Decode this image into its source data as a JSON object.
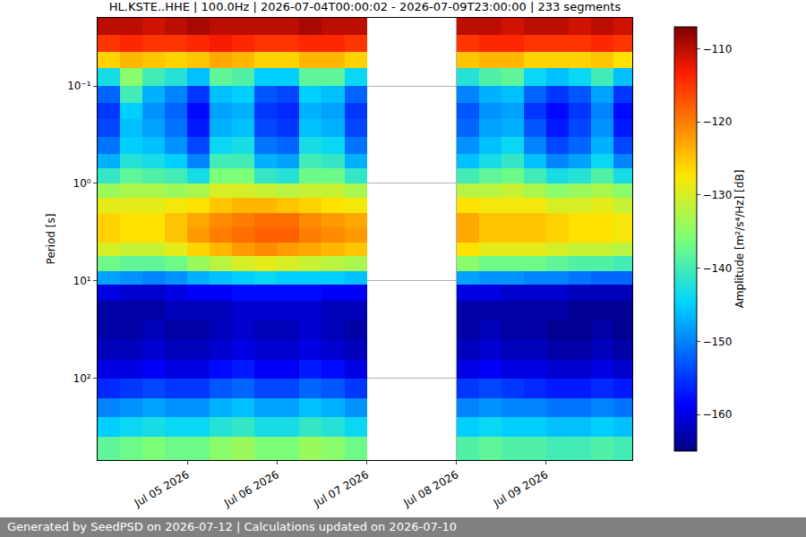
{
  "chart_data": {
    "type": "heatmap",
    "title": "HL.KSTE..HHE | 100.0Hz | 2026-07-04T00:00:02 - 2026-07-09T23:00:00 | 233 segments",
    "ylabel": "Period [s]",
    "footer": "Generated by SeedPSD on 2026-07-12 | Calculations updated on 2026-07-10",
    "log": "y",
    "grid": true,
    "color": "jet",
    "xlim": [
      "2026-07-04 00:00",
      "2026-07-09 23:00"
    ],
    "xticks": [
      {
        "value": "2026-07-05 00:00",
        "label": "Jul 05 2026"
      },
      {
        "value": "2026-07-06 00:00",
        "label": "Jul 06 2026"
      },
      {
        "value": "2026-07-07 00:00",
        "label": "Jul 07 2026"
      },
      {
        "value": "2026-07-08 00:00",
        "label": "Jul 08 2026"
      },
      {
        "value": "2026-07-09 00:00",
        "label": "Jul 09 2026"
      }
    ],
    "ylim": [
      0.02,
      690
    ],
    "yticks": [
      {
        "value": 0.1,
        "label": "10⁻¹"
      },
      {
        "value": 1,
        "label": "10⁰"
      },
      {
        "value": 10,
        "label": "10¹"
      },
      {
        "value": 100,
        "label": "10²"
      }
    ],
    "x_edges": [
      "2026-07-04 00:00",
      "2026-07-04 06:00",
      "2026-07-04 12:00",
      "2026-07-04 18:00",
      "2026-07-05 00:00",
      "2026-07-05 06:00",
      "2026-07-05 12:00",
      "2026-07-05 18:00",
      "2026-07-06 00:00",
      "2026-07-06 06:00",
      "2026-07-06 12:00",
      "2026-07-06 18:00",
      "2026-07-07 00:00",
      "2026-07-07 06:00",
      "2026-07-07 12:00",
      "2026-07-07 18:00",
      "2026-07-08 00:00",
      "2026-07-08 06:00",
      "2026-07-08 12:00",
      "2026-07-08 18:00",
      "2026-07-09 00:00",
      "2026-07-09 06:00",
      "2026-07-09 12:00",
      "2026-07-09 18:00",
      "2026-07-10 00:00"
    ],
    "y_edges": [
      0.02,
      0.03,
      0.045,
      0.065,
      0.1,
      0.15,
      0.22,
      0.33,
      0.5,
      0.7,
      1.0,
      1.4,
      2.0,
      2.8,
      4.0,
      5.6,
      8,
      11,
      16,
      25,
      40,
      65,
      100,
      160,
      250,
      400,
      690
    ],
    "cells": [
      [
        -110,
        -110,
        -111,
        -110,
        -109,
        -110,
        -110,
        -110,
        -110,
        -109,
        -110,
        -110,
        null,
        null,
        null,
        null,
        -110,
        -110,
        -111,
        -110,
        -110,
        -111,
        -110,
        -111
      ],
      [
        -115,
        -114,
        -115,
        -115,
        -114,
        -113,
        -114,
        -115,
        -115,
        -114,
        -114,
        -115,
        null,
        null,
        null,
        null,
        -115,
        -114,
        -114,
        -115,
        -115,
        -115,
        -114,
        -115
      ],
      [
        -126,
        -124,
        -125,
        -126,
        -125,
        -123,
        -124,
        -126,
        -126,
        -124,
        -124,
        -126,
        null,
        null,
        null,
        null,
        -125,
        -124,
        -124,
        -126,
        -126,
        -126,
        -125,
        -127
      ],
      [
        -143,
        -135,
        -140,
        -142,
        -146,
        -138,
        -139,
        -145,
        -145,
        -138,
        -138,
        -144,
        null,
        null,
        null,
        null,
        -142,
        -139,
        -138,
        -144,
        -146,
        -144,
        -140,
        -146
      ],
      [
        -152,
        -140,
        -147,
        -150,
        -155,
        -146,
        -145,
        -153,
        -154,
        -145,
        -146,
        -152,
        null,
        null,
        null,
        null,
        -150,
        -147,
        -146,
        -152,
        -155,
        -153,
        -148,
        -155
      ],
      [
        -155,
        -145,
        -149,
        -152,
        -158,
        -148,
        -147,
        -155,
        -156,
        -147,
        -148,
        -155,
        null,
        null,
        null,
        null,
        -153,
        -149,
        -148,
        -155,
        -158,
        -155,
        -150,
        -158
      ],
      [
        -154,
        -146,
        -148,
        -151,
        -157,
        -147,
        -146,
        -154,
        -155,
        -146,
        -147,
        -154,
        null,
        null,
        null,
        null,
        -152,
        -148,
        -147,
        -153,
        -157,
        -154,
        -149,
        -157
      ],
      [
        -151,
        -145,
        -146,
        -149,
        -154,
        -144,
        -143,
        -151,
        -152,
        -143,
        -144,
        -151,
        null,
        null,
        null,
        null,
        -149,
        -146,
        -144,
        -150,
        -154,
        -152,
        -147,
        -154
      ],
      [
        -147,
        -142,
        -143,
        -145,
        -150,
        -140,
        -140,
        -147,
        -148,
        -140,
        -141,
        -147,
        null,
        null,
        null,
        null,
        -146,
        -143,
        -141,
        -146,
        -150,
        -148,
        -144,
        -150
      ],
      [
        -141,
        -138,
        -139,
        -140,
        -143,
        -136,
        -136,
        -141,
        -142,
        -137,
        -137,
        -141,
        null,
        null,
        null,
        null,
        -140,
        -138,
        -137,
        -140,
        -143,
        -142,
        -139,
        -143
      ],
      [
        -134,
        -133,
        -133,
        -134,
        -133,
        -130,
        -130,
        -131,
        -132,
        -131,
        -131,
        -133,
        null,
        null,
        null,
        null,
        -132,
        -132,
        -131,
        -133,
        -135,
        -134,
        -133,
        -135
      ],
      [
        -129,
        -129,
        -129,
        -128,
        -127,
        -125,
        -124,
        -124,
        -125,
        -126,
        -127,
        -128,
        null,
        null,
        null,
        null,
        -127,
        -128,
        -128,
        -128,
        -130,
        -130,
        -129,
        -131
      ],
      [
        -126,
        -127,
        -127,
        -125,
        -123,
        -121,
        -120,
        -119,
        -119,
        -121,
        -122,
        -123,
        null,
        null,
        null,
        null,
        -123,
        -125,
        -125,
        -125,
        -126,
        -127,
        -127,
        -128
      ],
      [
        -126,
        -127,
        -127,
        -125,
        -122,
        -120,
        -119,
        -118,
        -118,
        -120,
        -121,
        -122,
        null,
        null,
        null,
        null,
        -123,
        -125,
        -125,
        -125,
        -126,
        -127,
        -127,
        -128
      ],
      [
        -130,
        -131,
        -131,
        -129,
        -126,
        -124,
        -122,
        -121,
        -122,
        -123,
        -124,
        -125,
        null,
        null,
        null,
        null,
        -127,
        -129,
        -129,
        -129,
        -130,
        -131,
        -131,
        -132
      ],
      [
        -137,
        -138,
        -138,
        -137,
        -134,
        -132,
        -130,
        -129,
        -130,
        -131,
        -132,
        -133,
        null,
        null,
        null,
        null,
        -135,
        -137,
        -137,
        -137,
        -138,
        -139,
        -139,
        -140
      ],
      [
        -148,
        -149,
        -150,
        -149,
        -147,
        -146,
        -145,
        -144,
        -145,
        -145,
        -145,
        -146,
        null,
        null,
        null,
        null,
        -148,
        -149,
        -149,
        -150,
        -150,
        -151,
        -152,
        -152
      ],
      [
        -160,
        -161,
        -161,
        -160,
        -159,
        -159,
        -158,
        -158,
        -158,
        -158,
        -159,
        -159,
        null,
        null,
        null,
        null,
        -160,
        -160,
        -161,
        -161,
        -161,
        -162,
        -162,
        -162
      ],
      [
        -163,
        -163,
        -163,
        -162,
        -162,
        -162,
        -161,
        -161,
        -161,
        -161,
        -162,
        -162,
        null,
        null,
        null,
        null,
        -163,
        -163,
        -163,
        -163,
        -163,
        -164,
        -164,
        -164
      ],
      [
        -163,
        -163,
        -162,
        -163,
        -163,
        -162,
        -161,
        -162,
        -162,
        -161,
        -162,
        -163,
        null,
        null,
        null,
        null,
        -163,
        -162,
        -163,
        -163,
        -164,
        -164,
        -163,
        -164
      ],
      [
        -162,
        -162,
        -161,
        -162,
        -162,
        -161,
        -160,
        -161,
        -161,
        -160,
        -161,
        -162,
        null,
        null,
        null,
        null,
        -162,
        -161,
        -162,
        -162,
        -163,
        -163,
        -162,
        -163
      ],
      [
        -160,
        -160,
        -159,
        -160,
        -160,
        -158,
        -157,
        -159,
        -159,
        -157,
        -158,
        -160,
        null,
        null,
        null,
        null,
        -160,
        -159,
        -160,
        -160,
        -161,
        -161,
        -160,
        -161
      ],
      [
        -156,
        -155,
        -154,
        -155,
        -155,
        -153,
        -152,
        -154,
        -154,
        -152,
        -153,
        -155,
        null,
        null,
        null,
        null,
        -155,
        -154,
        -155,
        -156,
        -157,
        -157,
        -156,
        -157
      ],
      [
        -150,
        -149,
        -148,
        -149,
        -149,
        -147,
        -146,
        -148,
        -148,
        -146,
        -147,
        -149,
        null,
        null,
        null,
        null,
        -150,
        -149,
        -150,
        -150,
        -151,
        -151,
        -150,
        -151
      ],
      [
        -145,
        -144,
        -143,
        -144,
        -144,
        -142,
        -141,
        -143,
        -143,
        -141,
        -142,
        -144,
        null,
        null,
        null,
        null,
        -145,
        -144,
        -145,
        -145,
        -146,
        -146,
        -145,
        -146
      ],
      [
        -138,
        -137,
        -136,
        -137,
        -137,
        -135,
        -134,
        -136,
        -136,
        -134,
        -135,
        -137,
        null,
        null,
        null,
        null,
        -139,
        -138,
        -139,
        -139,
        -140,
        -140,
        -139,
        -140
      ]
    ],
    "colorbar": {
      "title": "Amplitude [m²/s⁴/Hz] [dB]",
      "range": [
        -165,
        -107
      ],
      "ticks": [
        -110,
        -120,
        -130,
        -140,
        -150,
        -160
      ]
    }
  }
}
